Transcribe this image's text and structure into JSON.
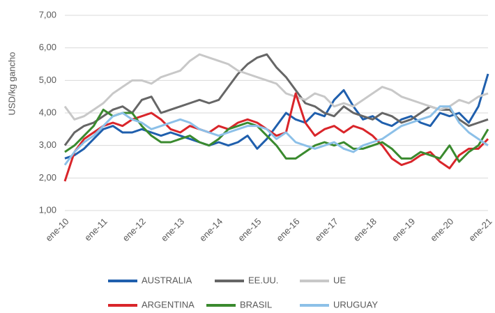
{
  "chart_data": {
    "type": "line",
    "y_label": "USD/kg gancho",
    "categories": [
      "ene-10",
      null,
      null,
      null,
      "ene-11",
      null,
      null,
      null,
      "ene-12",
      null,
      null,
      null,
      "ene-13",
      null,
      null,
      null,
      "ene-14",
      null,
      null,
      null,
      "ene-15",
      null,
      null,
      null,
      "ene-16",
      null,
      null,
      null,
      "ene-17",
      null,
      null,
      null,
      "ene-18",
      null,
      null,
      null,
      "ene-19",
      null,
      null,
      null,
      "ene-20",
      null,
      null,
      null,
      "ene-21"
    ],
    "ylim": [
      1,
      7
    ],
    "yticks": [
      {
        "value": 1,
        "label": "1,00"
      },
      {
        "value": 2,
        "label": "2,00"
      },
      {
        "value": 3,
        "label": "3,00"
      },
      {
        "value": 4,
        "label": "4,00"
      },
      {
        "value": 5,
        "label": "5,00"
      },
      {
        "value": 6,
        "label": "6,00"
      },
      {
        "value": 7,
        "label": "7,00"
      }
    ],
    "grid": true,
    "series": [
      {
        "name": "AUSTRALIA",
        "color": "#1f5fad",
        "values": [
          2.6,
          2.7,
          2.9,
          3.2,
          3.5,
          3.6,
          3.4,
          3.4,
          3.5,
          3.4,
          3.3,
          3.4,
          3.3,
          3.2,
          3.1,
          3.0,
          3.1,
          3.0,
          3.1,
          3.3,
          2.9,
          3.2,
          3.6,
          4.0,
          3.8,
          3.7,
          4.0,
          3.9,
          4.4,
          4.7,
          4.2,
          3.8,
          3.9,
          3.7,
          3.6,
          3.8,
          3.9,
          3.7,
          3.6,
          4.0,
          3.9,
          4.0,
          3.7,
          4.2,
          5.2
        ]
      },
      {
        "name": "EE.UU.",
        "color": "#666666",
        "values": [
          3.0,
          3.4,
          3.6,
          3.7,
          3.9,
          4.1,
          4.2,
          4.0,
          4.4,
          4.5,
          4.0,
          4.1,
          4.2,
          4.3,
          4.4,
          4.3,
          4.4,
          4.8,
          5.2,
          5.5,
          5.7,
          5.8,
          5.4,
          5.1,
          4.7,
          4.3,
          4.2,
          4.0,
          3.9,
          4.2,
          4.0,
          3.9,
          3.8,
          4.0,
          3.9,
          3.7,
          3.8,
          4.0,
          4.2,
          4.1,
          4.1,
          3.8,
          3.6,
          3.7,
          3.8
        ]
      },
      {
        "name": "UE",
        "color": "#c8c8c8",
        "values": [
          4.2,
          3.8,
          3.9,
          4.1,
          4.3,
          4.6,
          4.8,
          5.0,
          5.0,
          4.9,
          5.1,
          5.2,
          5.3,
          5.6,
          5.8,
          5.7,
          5.6,
          5.5,
          5.3,
          5.2,
          5.1,
          5.0,
          4.9,
          4.6,
          4.5,
          4.4,
          4.6,
          4.5,
          4.2,
          4.3,
          4.2,
          4.4,
          4.6,
          4.8,
          4.7,
          4.5,
          4.4,
          4.3,
          4.2,
          4.1,
          4.2,
          4.4,
          4.3,
          4.5,
          4.6
        ]
      },
      {
        "name": "ARGENTINA",
        "color": "#d9252a",
        "values": [
          1.9,
          2.8,
          3.2,
          3.4,
          3.6,
          3.7,
          3.6,
          3.8,
          3.9,
          4.0,
          3.8,
          3.5,
          3.4,
          3.6,
          3.5,
          3.4,
          3.6,
          3.5,
          3.7,
          3.8,
          3.7,
          3.5,
          3.3,
          3.4,
          4.6,
          3.7,
          3.3,
          3.5,
          3.6,
          3.4,
          3.6,
          3.5,
          3.3,
          3.0,
          2.6,
          2.4,
          2.5,
          2.7,
          2.8,
          2.5,
          2.3,
          2.7,
          2.9,
          2.9,
          3.2
        ]
      },
      {
        "name": "BRASIL",
        "color": "#3a8a2e",
        "values": [
          2.8,
          3.0,
          3.3,
          3.6,
          4.1,
          3.9,
          4.0,
          4.0,
          3.6,
          3.3,
          3.1,
          3.1,
          3.2,
          3.3,
          3.1,
          3.0,
          3.2,
          3.5,
          3.6,
          3.7,
          3.6,
          3.3,
          3.0,
          2.6,
          2.6,
          2.8,
          3.0,
          3.1,
          3.0,
          3.1,
          2.9,
          2.9,
          3.0,
          3.1,
          2.9,
          2.6,
          2.6,
          2.8,
          2.7,
          2.6,
          3.0,
          2.5,
          2.8,
          3.0,
          3.5
        ]
      },
      {
        "name": "URUGUAY",
        "color": "#8cc0e8",
        "values": [
          2.4,
          2.8,
          3.1,
          3.3,
          3.6,
          3.9,
          4.0,
          3.8,
          3.7,
          3.5,
          3.6,
          3.7,
          3.8,
          3.7,
          3.5,
          3.4,
          3.3,
          3.4,
          3.5,
          3.6,
          3.6,
          3.5,
          3.2,
          3.4,
          3.1,
          3.0,
          2.9,
          3.0,
          3.1,
          2.9,
          2.8,
          3.0,
          3.1,
          3.2,
          3.4,
          3.6,
          3.7,
          3.8,
          3.9,
          4.2,
          4.2,
          3.7,
          3.4,
          3.2,
          3.0
        ]
      }
    ]
  }
}
